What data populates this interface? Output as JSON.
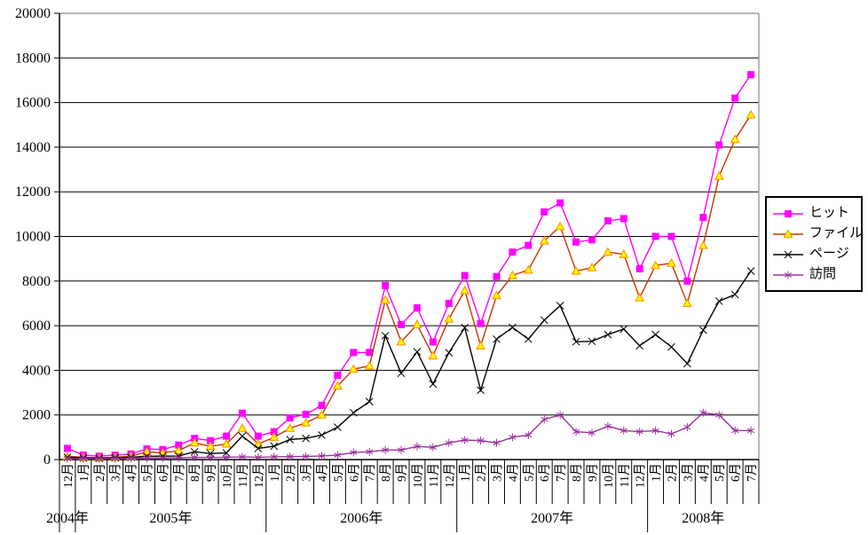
{
  "chart_data": {
    "type": "line",
    "title": "",
    "xlabel": "",
    "ylabel": "",
    "grid": true,
    "legend_position": "right",
    "y_axis": {
      "min": 0,
      "max": 20000,
      "step": 2000,
      "tick_labels": [
        "0",
        "2000",
        "4000",
        "6000",
        "8000",
        "10000",
        "12000",
        "14000",
        "16000",
        "18000",
        "20000"
      ]
    },
    "x_axis": {
      "months": [
        "12月",
        "1月",
        "2月",
        "3月",
        "4月",
        "5月",
        "6月",
        "7月",
        "8月",
        "9月",
        "10月",
        "11月",
        "12月",
        "1月",
        "2月",
        "3月",
        "4月",
        "5月",
        "6月",
        "7月",
        "8月",
        "9月",
        "10月",
        "11月",
        "12月",
        "1月",
        "2月",
        "3月",
        "4月",
        "5月",
        "6月",
        "7月",
        "8月",
        "9月",
        "10月",
        "11月",
        "12月",
        "1月",
        "2月",
        "3月",
        "4月",
        "5月",
        "6月",
        "7月"
      ],
      "year_groups": [
        {
          "label": "2004年",
          "months": 1
        },
        {
          "label": "2005年",
          "months": 12
        },
        {
          "label": "2006年",
          "months": 12
        },
        {
          "label": "2007年",
          "months": 12
        },
        {
          "label": "2008年",
          "months": 7
        }
      ]
    },
    "series": [
      {
        "name": "ヒット",
        "color": "#FF00FF",
        "marker": "square",
        "marker_fill": "#FF00FF",
        "marker_stroke": "#FF00FF",
        "values": [
          500,
          200,
          150,
          200,
          250,
          480,
          450,
          650,
          950,
          850,
          1050,
          2080,
          1050,
          1250,
          1870,
          2030,
          2430,
          3780,
          4800,
          4800,
          7800,
          6050,
          6800,
          5270,
          7000,
          8250,
          6100,
          8200,
          9300,
          9600,
          11100,
          11500,
          9750,
          9850,
          10700,
          10800,
          8550,
          10000,
          10000,
          8000,
          10850,
          14100,
          16200,
          17250
        ]
      },
      {
        "name": "ファイル",
        "color": "#CC3300",
        "marker": "triangle",
        "marker_fill": "#FFFF00",
        "marker_stroke": "#FF9900",
        "values": [
          150,
          100,
          80,
          100,
          150,
          350,
          300,
          400,
          750,
          600,
          700,
          1400,
          700,
          1000,
          1400,
          1650,
          2000,
          3300,
          4050,
          4200,
          7150,
          5280,
          6050,
          4650,
          6300,
          7580,
          5100,
          7350,
          8250,
          8500,
          9800,
          10450,
          8450,
          8600,
          9300,
          9200,
          7250,
          8700,
          8800,
          7000,
          9600,
          12700,
          14350,
          15450
        ]
      },
      {
        "name": "ページ",
        "color": "#000000",
        "marker": "x",
        "marker_fill": "#000000",
        "marker_stroke": "#000000",
        "values": [
          100,
          70,
          60,
          80,
          100,
          150,
          150,
          160,
          350,
          270,
          300,
          1050,
          500,
          600,
          900,
          950,
          1100,
          1450,
          2100,
          2600,
          5550,
          3870,
          4830,
          3390,
          4790,
          5910,
          3110,
          5400,
          5920,
          5400,
          6250,
          6900,
          5280,
          5300,
          5600,
          5850,
          5100,
          5600,
          5050,
          4300,
          5800,
          7100,
          7400,
          8450
        ]
      },
      {
        "name": "訪問",
        "color": "#993399",
        "marker": "star",
        "marker_fill": "#993399",
        "marker_stroke": "#993399",
        "values": [
          50,
          40,
          40,
          50,
          60,
          70,
          70,
          80,
          100,
          90,
          100,
          120,
          100,
          120,
          130,
          140,
          160,
          200,
          320,
          350,
          430,
          430,
          590,
          550,
          750,
          875,
          850,
          750,
          1000,
          1100,
          1800,
          2000,
          1250,
          1200,
          1500,
          1300,
          1250,
          1300,
          1150,
          1450,
          2100,
          2000,
          1300,
          1300
        ]
      }
    ],
    "plot_style": {
      "background": "#FFFFFF",
      "axis_color": "#000000",
      "gridline_color": "#000000",
      "border_color": "#A0A0A0"
    }
  }
}
